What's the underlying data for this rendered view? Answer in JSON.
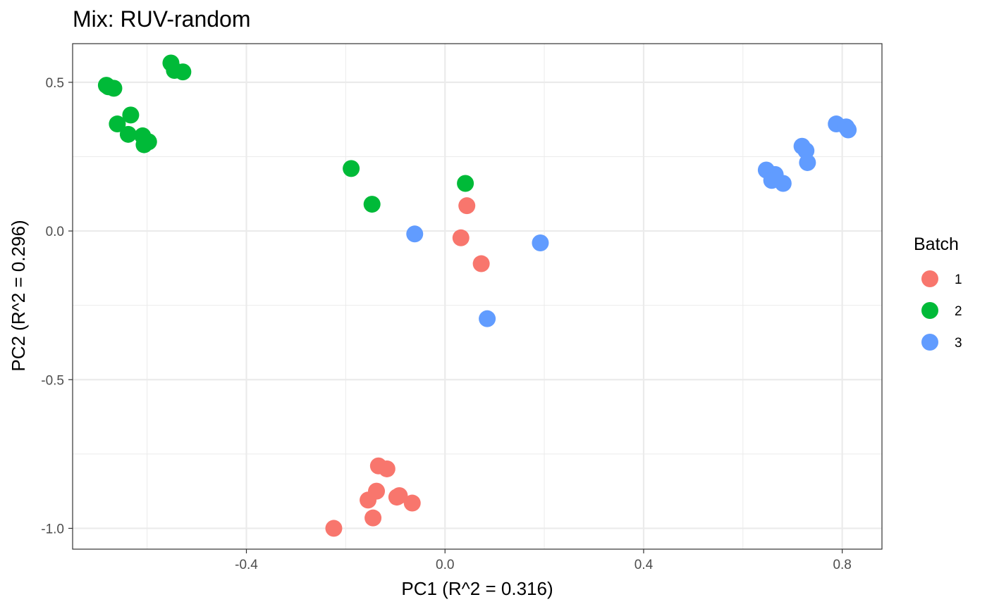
{
  "chart_data": {
    "type": "scatter",
    "title": "Mix: RUV-random",
    "xlabel": "PC1 (R^2 = 0.316)",
    "ylabel": "PC2 (R^2 = 0.296)",
    "xlim": [
      -0.75,
      0.88
    ],
    "ylim": [
      -1.07,
      0.63
    ],
    "x_ticks": [
      -0.4,
      0.0,
      0.4,
      0.8
    ],
    "x_tick_labels": [
      "-0.4",
      "0.0",
      "0.4",
      "0.8"
    ],
    "y_ticks": [
      -1.0,
      -0.5,
      0.0,
      0.5
    ],
    "y_tick_labels": [
      "-1.0",
      "-0.5",
      "0.0",
      "0.5"
    ],
    "grid": true,
    "legend": {
      "title": "Batch",
      "position": "right"
    },
    "series": [
      {
        "name": "1",
        "color": "#F8766D",
        "points": [
          [
            0.044,
            0.085
          ],
          [
            0.032,
            -0.023
          ],
          [
            0.073,
            -0.11
          ],
          [
            -0.134,
            -0.79
          ],
          [
            -0.117,
            -0.8
          ],
          [
            -0.138,
            -0.875
          ],
          [
            -0.155,
            -0.905
          ],
          [
            -0.097,
            -0.895
          ],
          [
            -0.092,
            -0.89
          ],
          [
            -0.066,
            -0.915
          ],
          [
            -0.145,
            -0.965
          ],
          [
            -0.224,
            -1.0
          ]
        ]
      },
      {
        "name": "2",
        "color": "#00BA38",
        "points": [
          [
            -0.552,
            0.565
          ],
          [
            -0.545,
            0.54
          ],
          [
            -0.528,
            0.535
          ],
          [
            -0.682,
            0.49
          ],
          [
            -0.678,
            0.485
          ],
          [
            -0.667,
            0.48
          ],
          [
            -0.633,
            0.39
          ],
          [
            -0.66,
            0.36
          ],
          [
            -0.638,
            0.325
          ],
          [
            -0.609,
            0.32
          ],
          [
            -0.597,
            0.3
          ],
          [
            -0.606,
            0.29
          ],
          [
            -0.189,
            0.21
          ],
          [
            -0.147,
            0.09
          ],
          [
            0.041,
            0.16
          ]
        ]
      },
      {
        "name": "3",
        "color": "#619CFF",
        "points": [
          [
            -0.061,
            -0.01
          ],
          [
            0.192,
            -0.04
          ],
          [
            0.085,
            -0.295
          ],
          [
            0.647,
            0.205
          ],
          [
            0.665,
            0.19
          ],
          [
            0.658,
            0.17
          ],
          [
            0.681,
            0.16
          ],
          [
            0.719,
            0.285
          ],
          [
            0.727,
            0.27
          ],
          [
            0.73,
            0.23
          ],
          [
            0.788,
            0.36
          ],
          [
            0.808,
            0.35
          ],
          [
            0.812,
            0.34
          ]
        ]
      }
    ]
  }
}
